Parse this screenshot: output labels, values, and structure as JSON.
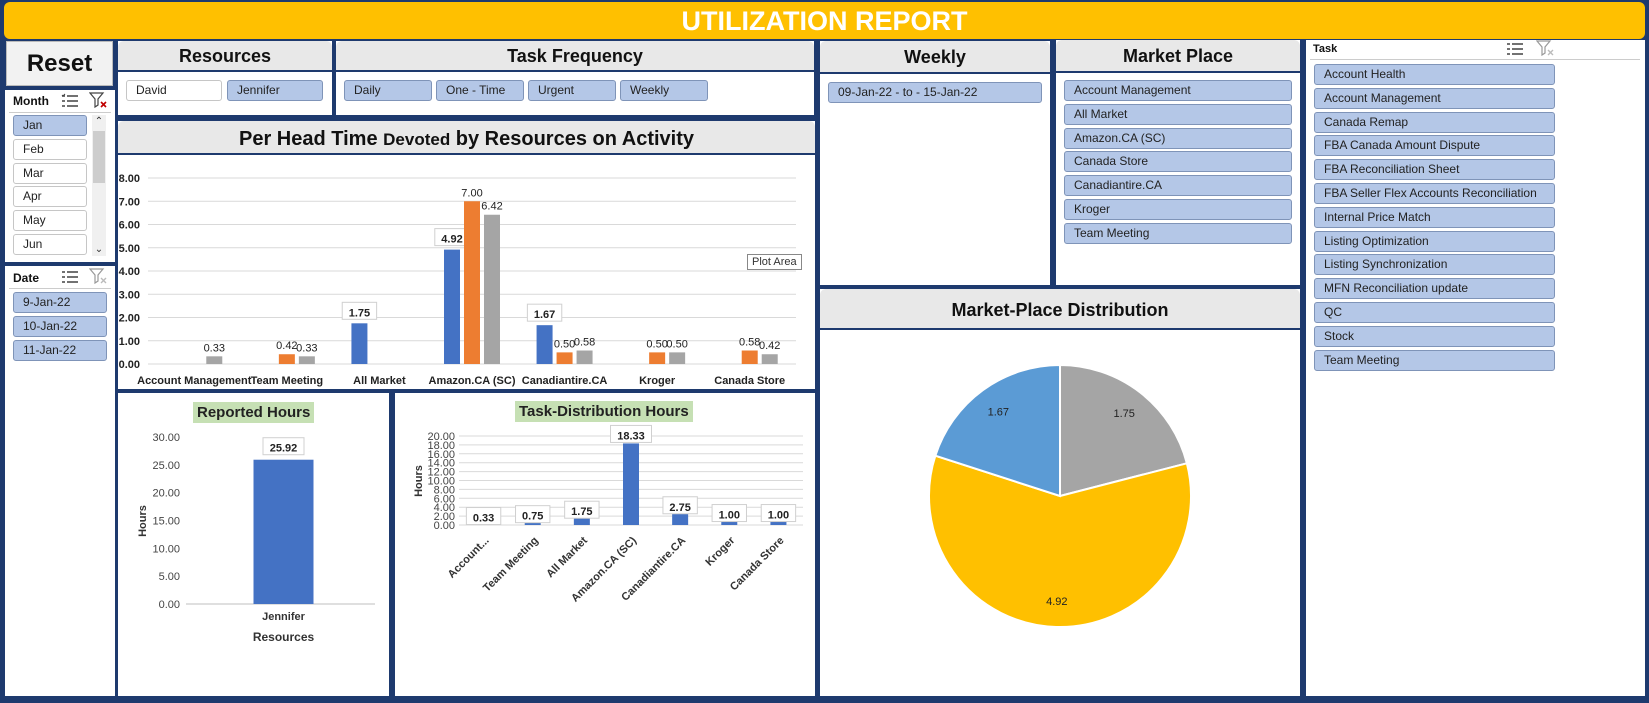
{
  "report": {
    "title": "UTILIZATION REPORT"
  },
  "reset": {
    "label": "Reset"
  },
  "month_slicer": {
    "header": "Month",
    "items": [
      {
        "label": "Jan",
        "selected": true
      },
      {
        "label": "Feb",
        "selected": false
      },
      {
        "label": "Mar",
        "selected": false
      },
      {
        "label": "Apr",
        "selected": false
      },
      {
        "label": "May",
        "selected": false
      },
      {
        "label": "Jun",
        "selected": false
      }
    ]
  },
  "date_slicer": {
    "header": "Date",
    "items": [
      {
        "label": "9-Jan-22",
        "selected": true
      },
      {
        "label": "10-Jan-22",
        "selected": true
      },
      {
        "label": "11-Jan-22",
        "selected": true
      }
    ]
  },
  "resources_slicer": {
    "header": "Resources",
    "items": [
      {
        "label": "David",
        "selected": false
      },
      {
        "label": "Jennifer",
        "selected": true
      }
    ]
  },
  "frequency_slicer": {
    "header": "Task Frequency",
    "items": [
      {
        "label": "Daily",
        "selected": true
      },
      {
        "label": "One - Time",
        "selected": true
      },
      {
        "label": "Urgent",
        "selected": true
      },
      {
        "label": "Weekly",
        "selected": true
      }
    ]
  },
  "weekly_slicer": {
    "header": "Weekly",
    "items": [
      {
        "label": "09-Jan-22 - to - 15-Jan-22",
        "selected": true
      }
    ]
  },
  "market_slicer": {
    "header": "Market Place",
    "items": [
      {
        "label": "Account Management",
        "selected": true
      },
      {
        "label": "All Market",
        "selected": true
      },
      {
        "label": "Amazon.CA (SC)",
        "selected": true
      },
      {
        "label": "Canada Store",
        "selected": true
      },
      {
        "label": "Canadiantire.CA",
        "selected": true
      },
      {
        "label": "Kroger",
        "selected": true
      },
      {
        "label": "Team Meeting",
        "selected": true
      }
    ]
  },
  "task_slicer": {
    "header": "Task",
    "items": [
      {
        "label": "Account Health",
        "selected": true
      },
      {
        "label": "Account Management",
        "selected": true
      },
      {
        "label": "Canada Remap",
        "selected": true
      },
      {
        "label": "FBA Canada Amount Dispute",
        "selected": true
      },
      {
        "label": "FBA Reconciliation Sheet",
        "selected": true
      },
      {
        "label": "FBA Seller Flex Accounts Reconciliation",
        "selected": true
      },
      {
        "label": "Internal Price Match",
        "selected": true
      },
      {
        "label": "Listing Optimization",
        "selected": true
      },
      {
        "label": "Listing Synchronization",
        "selected": true
      },
      {
        "label": "MFN Reconciliation update",
        "selected": true
      },
      {
        "label": "QC",
        "selected": true
      },
      {
        "label": "Stock",
        "selected": true
      },
      {
        "label": "Team Meeting",
        "selected": true
      }
    ]
  },
  "plot_area_tooltip": "Plot Area",
  "colors": {
    "banner": "#ffc000",
    "frame": "#1e3a6e",
    "slicer_selected": "#b4c7e7",
    "blue": "#4472c4",
    "orange": "#ed7d31",
    "gray": "#a5a5a5",
    "label_green": "#c6e0b4"
  },
  "chart_data": [
    {
      "id": "per_head",
      "type": "bar",
      "title_parts": [
        "Per Head Time ",
        "Devoted",
        " by Resources on Activity"
      ],
      "categories": [
        "Account Management",
        "Team Meeting",
        "All Market",
        "Amazon.CA (SC)",
        "Canadiantire.CA",
        "Kroger",
        "Canada Store"
      ],
      "series": [
        {
          "color": "#4472c4",
          "values": [
            null,
            null,
            1.75,
            4.92,
            1.67,
            null,
            null
          ]
        },
        {
          "color": "#ed7d31",
          "values": [
            null,
            0.42,
            null,
            7.0,
            0.5,
            0.5,
            0.58
          ]
        },
        {
          "color": "#a5a5a5",
          "values": [
            0.33,
            0.33,
            null,
            6.42,
            0.58,
            0.5,
            0.42
          ]
        }
      ],
      "ylim": [
        0,
        8
      ],
      "yticks": [
        "0.00",
        "1.00",
        "2.00",
        "3.00",
        "4.00",
        "5.00",
        "6.00",
        "7.00",
        "8.00"
      ],
      "grid": true
    },
    {
      "id": "reported",
      "type": "bar",
      "title": "Reported Hours",
      "categories": [
        "Jennifer"
      ],
      "values": [
        25.92
      ],
      "ylim": [
        0,
        30
      ],
      "yticks": [
        "0.00",
        "5.00",
        "10.00",
        "15.00",
        "20.00",
        "25.00",
        "30.00"
      ],
      "ylabel": "Hours",
      "xlabel": "Resources"
    },
    {
      "id": "task_dist",
      "type": "bar",
      "title": "Task-Distribution Hours",
      "categories": [
        "Account...",
        "Team Meeting",
        "All Market",
        "Amazon.CA (SC)",
        "Canadiantire.CA",
        "Kroger",
        "Canada Store"
      ],
      "values": [
        0.33,
        0.75,
        1.75,
        18.33,
        2.75,
        1.0,
        1.0
      ],
      "ylim": [
        0,
        20
      ],
      "yticks": [
        "0.00",
        "2.00",
        "4.00",
        "6.00",
        "8.00",
        "10.00",
        "12.00",
        "14.00",
        "16.00",
        "18.00",
        "20.00"
      ],
      "ylabel": "Hours",
      "grid": true
    },
    {
      "id": "mp_dist",
      "type": "pie",
      "title": "Market-Place Distribution",
      "slices": [
        {
          "value": 1.75,
          "label": "1.75",
          "color": "#a5a5a5"
        },
        {
          "value": 4.92,
          "label": "4.92",
          "color": "#ffc000"
        },
        {
          "value": 1.67,
          "label": "1.67",
          "color": "#5b9bd5"
        }
      ]
    }
  ]
}
